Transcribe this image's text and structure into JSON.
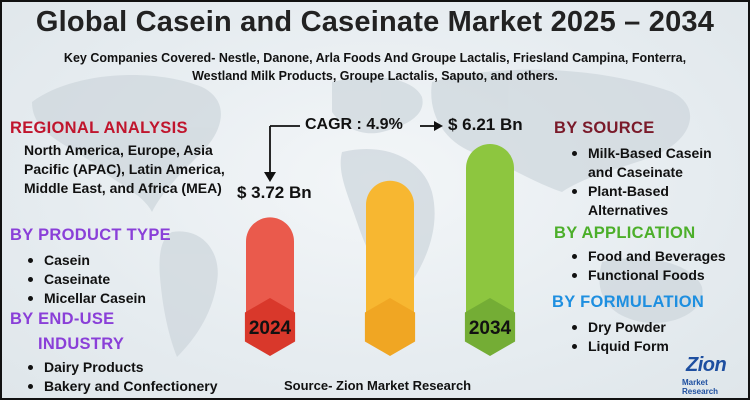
{
  "title": "Global Casein and Caseinate Market 2025 – 2034",
  "subtitle": "Key Companies Covered- Nestle, Danone, Arla Foods And Groupe Lactalis, Friesland Campina, Fonterra, Westland Milk Products, Groupe Lactalis, Saputo, and others.",
  "regional": {
    "heading": "REGIONAL ANALYSIS",
    "text": "North America, Europe, Asia Pacific (APAC), Latin America, Middle East, and Africa (MEA)"
  },
  "product_type": {
    "heading": "BY PRODUCT TYPE",
    "items": [
      "Casein",
      "Caseinate",
      "Micellar Casein"
    ]
  },
  "end_use": {
    "heading_line1": "BY END-USE",
    "heading_line2": "INDUSTRY",
    "items": [
      "Dairy Products",
      "Bakery and Confectionery"
    ]
  },
  "source_seg": {
    "heading": "BY SOURCE",
    "items": [
      "Milk-Based Casein and Caseinate",
      "Plant-Based Alternatives"
    ]
  },
  "application": {
    "heading": "BY APPLICATION",
    "items": [
      "Food and Beverages",
      "Functional Foods"
    ]
  },
  "formulation": {
    "heading": "BY FORMULATION",
    "items": [
      "Dry Powder",
      "Liquid Form"
    ]
  },
  "cagr_text": "CAGR : 4.9%",
  "footer_source": "Source- Zion Market Research",
  "logo": {
    "name": "Zion",
    "tagline": "Market Research"
  },
  "colors": {
    "bar_2024": "#ea5a4c",
    "bar_2024_badge": "#d9382b",
    "bar_mid": "#f7b731",
    "bar_mid_badge": "#f0a623",
    "bar_2034": "#8dc63f",
    "bar_2034_badge": "#74ad35"
  },
  "chart_data": {
    "type": "bar",
    "categories": [
      "2024",
      "",
      "2034"
    ],
    "values": [
      3.72,
      null,
      6.21
    ],
    "value_labels": [
      "$ 3.72 Bn",
      "",
      "$ 6.21 Bn"
    ],
    "cagr": "4.9%"
  }
}
